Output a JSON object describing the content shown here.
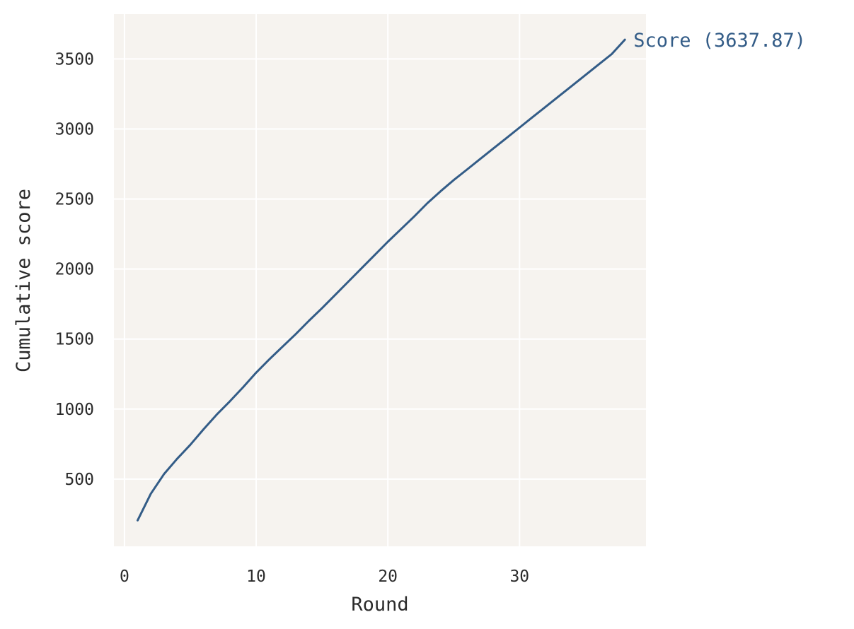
{
  "chart_data": {
    "type": "line",
    "title": "",
    "xlabel": "Round",
    "ylabel": "Cumulative score",
    "xlim": [
      -0.8,
      39.6
    ],
    "ylim": [
      20,
      3820
    ],
    "xticks": [
      0,
      10,
      20,
      30
    ],
    "yticks": [
      500,
      1000,
      1500,
      2000,
      2500,
      3000,
      3500
    ],
    "grid": true,
    "legend": "none",
    "colors": {
      "background": "#f6f3ef",
      "grid": "#ffffff",
      "line": "#335c87"
    },
    "series": [
      {
        "end_label": "Score (3637.87)",
        "x": [
          1,
          2,
          3,
          4,
          5,
          6,
          7,
          8,
          9,
          10,
          11,
          12,
          13,
          14,
          15,
          16,
          17,
          18,
          19,
          20,
          21,
          22,
          23,
          24,
          25,
          26,
          27,
          28,
          29,
          30,
          31,
          32,
          33,
          34,
          35,
          36,
          37,
          38
        ],
        "y": [
          205,
          395,
          535,
          645,
          745,
          855,
          960,
          1055,
          1155,
          1260,
          1355,
          1445,
          1535,
          1630,
          1720,
          1815,
          1910,
          2005,
          2100,
          2195,
          2285,
          2375,
          2470,
          2555,
          2635,
          2710,
          2785,
          2860,
          2935,
          3010,
          3085,
          3160,
          3235,
          3310,
          3385,
          3460,
          3535,
          3637.87
        ]
      }
    ]
  }
}
